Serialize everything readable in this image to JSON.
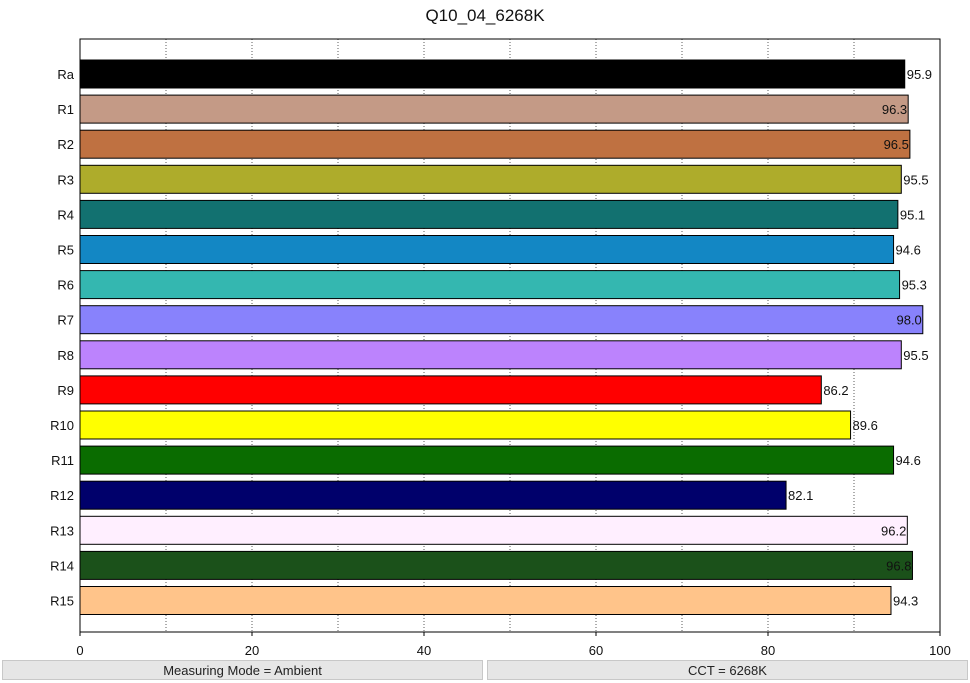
{
  "chart_data": {
    "type": "bar",
    "orientation": "horizontal",
    "title": "Q10_04_6268K",
    "xlabel": "",
    "ylabel": "",
    "xlim": [
      0,
      100
    ],
    "xticks": [
      0,
      20,
      40,
      60,
      80,
      100
    ],
    "grid": "vertical dotted",
    "categories": [
      "Ra",
      "R1",
      "R2",
      "R3",
      "R4",
      "R5",
      "R6",
      "R7",
      "R8",
      "R9",
      "R10",
      "R11",
      "R12",
      "R13",
      "R14",
      "R15"
    ],
    "values": [
      95.9,
      96.3,
      96.5,
      95.5,
      95.1,
      94.6,
      95.3,
      98.0,
      95.5,
      86.2,
      89.6,
      94.6,
      82.1,
      96.2,
      96.8,
      94.3
    ],
    "value_labels": [
      "95.9",
      "96.3",
      "96.5",
      "95.5",
      "95.1",
      "94.6",
      "95.3",
      "98.0",
      "95.5",
      "86.2",
      "89.6",
      "94.6",
      "82.1",
      "96.2",
      "96.8",
      "94.3"
    ],
    "colors": [
      "#000000",
      "#c49a86",
      "#bf7141",
      "#aeac2b",
      "#127170",
      "#1387c4",
      "#34b7b0",
      "#8882fc",
      "#bc83fd",
      "#ff0000",
      "#ffff00",
      "#0a6c00",
      "#00006b",
      "#ffefff",
      "#1b511a",
      "#ffc48a"
    ]
  },
  "status": {
    "left": "Measuring Mode = Ambient",
    "right": "CCT = 6268K"
  }
}
